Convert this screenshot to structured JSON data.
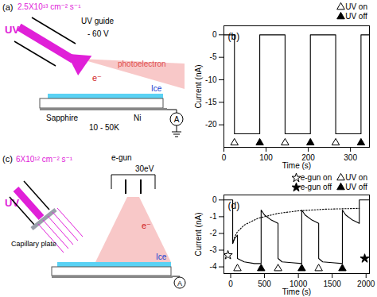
{
  "diagrams": [
    {
      "panel": "(a)",
      "flux": "2.5X10¹³ cm⁻² s⁻¹",
      "source": "UV",
      "guide": "UV guide",
      "voltage": "- 60 V",
      "electron_label": "photoelectron",
      "electron": "e⁻",
      "layers": {
        "ice": "Ice",
        "substrate": "Sapphire",
        "temperature": "10 - 50K",
        "electrode": "Ni"
      },
      "meter": "A"
    },
    {
      "panel": "(c)",
      "flux": "6X10¹² cm⁻² s⁻¹",
      "source": "UV",
      "gun": "e-gun",
      "energy": "30eV",
      "plate": "Capillary plate",
      "electron": "e⁻",
      "layers": {
        "ice": "Ice"
      },
      "meter": "A"
    }
  ],
  "chart_data": [
    {
      "type": "line",
      "title": "(b)",
      "x_label": "Time (s)",
      "y_label": "Current (nA)",
      "xlim": [
        0,
        345
      ],
      "xticks": [
        0,
        100,
        200,
        300
      ],
      "ylim": [
        -25,
        2
      ],
      "yticks": [
        -20,
        -15,
        -10,
        -5,
        0
      ],
      "grid": false,
      "legend": "top-right",
      "series": [
        {
          "type": "line",
          "color": "#000000",
          "line_style": "solid",
          "x": [
            0,
            25,
            25,
            85,
            85,
            145,
            145,
            205,
            205,
            265,
            265,
            325,
            325,
            345
          ],
          "values": [
            0,
            0,
            -22,
            -22,
            0,
            0,
            -22,
            -22,
            0,
            0,
            -22,
            -22,
            0,
            0
          ]
        },
        {
          "name": "UV on",
          "type": "scatter",
          "marker": "triangle-open",
          "color": "#000000",
          "x": [
            25,
            145,
            265
          ],
          "values": [
            -24,
            -24,
            -24
          ]
        },
        {
          "name": "UV off",
          "type": "scatter",
          "marker": "triangle",
          "color": "#000000",
          "x": [
            85,
            205,
            325
          ],
          "values": [
            -24,
            -24,
            -24
          ]
        }
      ]
    },
    {
      "type": "line",
      "title": "(d)",
      "x_label": "Time (s)",
      "y_label": "Current (nA)",
      "xlim": [
        -100,
        2050
      ],
      "xticks": [
        0,
        500,
        1000,
        1500,
        2000
      ],
      "ylim": [
        -4.4,
        0.3
      ],
      "yticks": [
        -4,
        -3,
        -2,
        -1,
        0
      ],
      "grid": false,
      "legend": "top-right",
      "series": [
        {
          "type": "line",
          "color": "#000000",
          "line_style": "solid",
          "x": [
            -100,
            30,
            30,
            60,
            100,
            100,
            200,
            350,
            450,
            450,
            500,
            600,
            700,
            700,
            760,
            900,
            1050,
            1050,
            1100,
            1200,
            1300,
            1300,
            1360,
            1500,
            1650,
            1650,
            1700,
            1800,
            1900,
            1900,
            2050
          ],
          "values": [
            0,
            0,
            -2.6,
            -2.3,
            -2.1,
            -3.5,
            -3.7,
            -3.8,
            -3.8,
            -0.6,
            -0.9,
            -1.2,
            -1.4,
            -3.5,
            -3.7,
            -3.75,
            -3.8,
            -0.6,
            -0.9,
            -1.2,
            -1.4,
            -3.5,
            -3.7,
            -3.75,
            -3.8,
            -0.6,
            -0.9,
            -1.2,
            -1.4,
            0,
            0
          ]
        },
        {
          "type": "line",
          "color": "#000000",
          "line_style": "dotted",
          "x": [
            30,
            60,
            100,
            200,
            400,
            700,
            1000,
            1400,
            1900
          ],
          "values": [
            -2.6,
            -2.2,
            -1.9,
            -1.5,
            -1.1,
            -0.8,
            -0.65,
            -0.55,
            -0.5
          ]
        },
        {
          "name": "e-gun on",
          "type": "scatter",
          "marker": "star-open",
          "color": "#000000",
          "x": [
            -40
          ],
          "values": [
            -3.3
          ]
        },
        {
          "name": "UV on",
          "type": "scatter",
          "marker": "triangle-open",
          "color": "#000000",
          "x": [
            100,
            700,
            1300
          ],
          "values": [
            -4.1,
            -4.1,
            -4.1
          ]
        },
        {
          "name": "e-gun off",
          "type": "scatter",
          "marker": "star",
          "color": "#000000",
          "x": [
            1980
          ],
          "values": [
            -3.5
          ]
        },
        {
          "name": "UV off",
          "type": "scatter",
          "marker": "triangle",
          "color": "#000000",
          "x": [
            450,
            1050,
            1650
          ],
          "values": [
            -4.1,
            -4.1,
            -4.1
          ]
        }
      ]
    }
  ]
}
